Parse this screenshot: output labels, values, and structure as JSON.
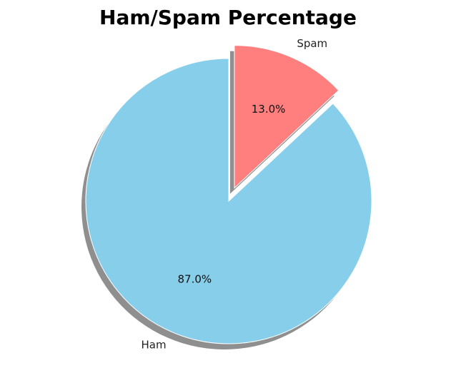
{
  "chart_data": {
    "type": "pie",
    "title": "Ham/Spam Percentage",
    "slices": [
      {
        "label": "Ham",
        "value": 87.0,
        "pct_label": "87.0%",
        "color": "#87CEEB",
        "explode": false
      },
      {
        "label": "Spam",
        "value": 13.0,
        "pct_label": "13.0%",
        "color": "#FF7F7F",
        "explode": true
      }
    ],
    "shadow": true,
    "shadow_color": "#8f8f8f",
    "edge_color": "#ffffff",
    "start_angle": 90,
    "direction": "counterclockwise",
    "legend": "none"
  }
}
